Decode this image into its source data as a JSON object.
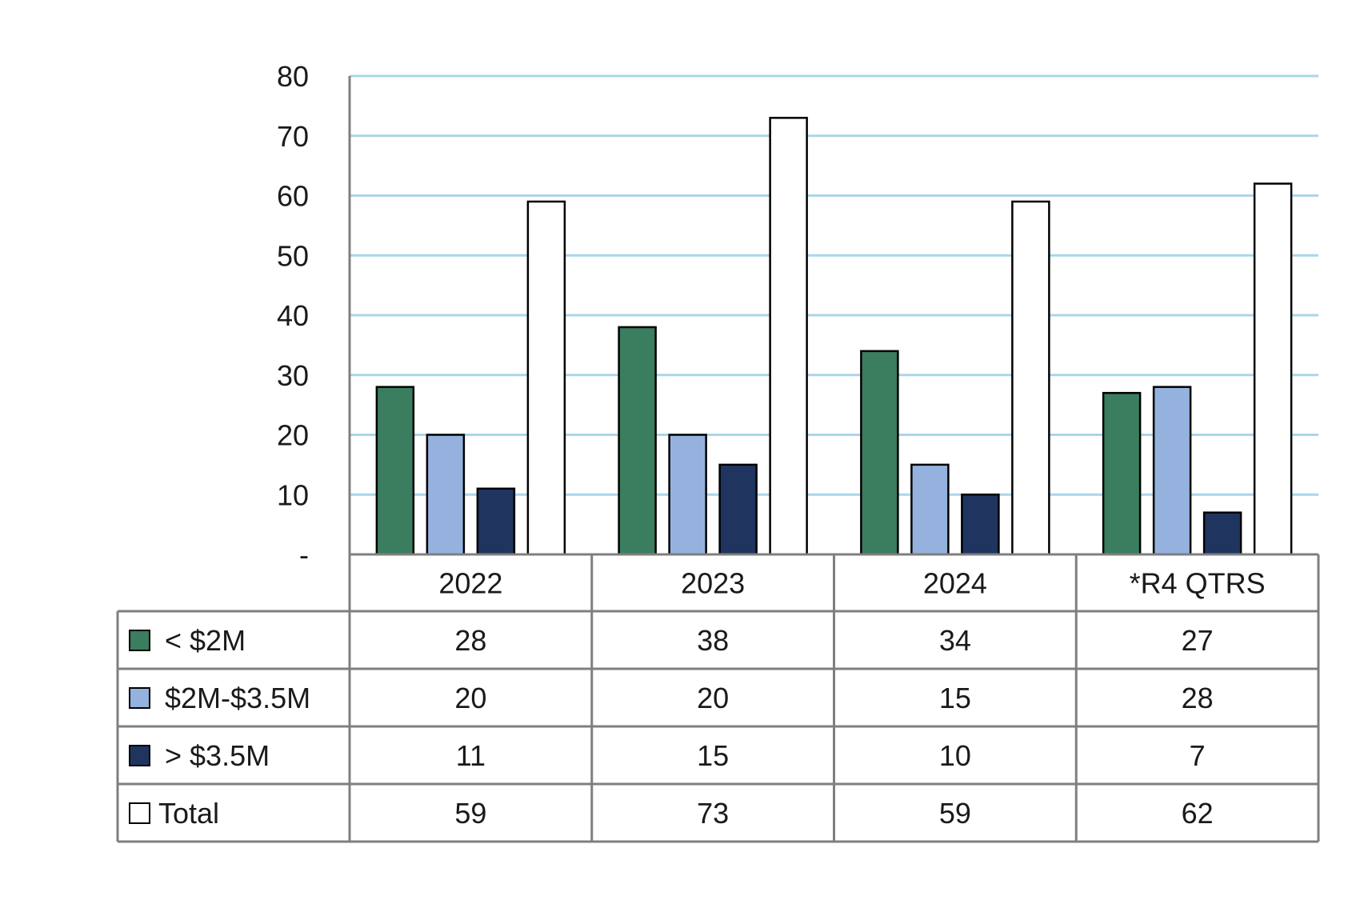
{
  "chart_data": {
    "type": "bar",
    "categories": [
      "2022",
      "2023",
      "2024",
      "*R4 QTRS"
    ],
    "series": [
      {
        "name": "< $2M",
        "values": [
          28,
          38,
          34,
          27
        ],
        "color": "#3a7d5f"
      },
      {
        "name": "$2M-$3.5M",
        "values": [
          20,
          20,
          15,
          28
        ],
        "color": "#95b2df"
      },
      {
        "name": "> $3.5M",
        "values": [
          11,
          15,
          10,
          7
        ],
        "color": "#1f3560"
      },
      {
        "name": "Total",
        "values": [
          59,
          73,
          59,
          62
        ],
        "color": "#ffffff"
      }
    ],
    "ylim": [
      0,
      80
    ],
    "yticks": [
      0,
      10,
      20,
      30,
      40,
      50,
      60,
      70,
      80
    ],
    "ytick_labels": [
      "-",
      "10",
      "20",
      "30",
      "40",
      "50",
      "60",
      "70",
      "80"
    ],
    "grid": true,
    "gridline_color": "#a9d6ea",
    "legend": "data-table",
    "title": "",
    "xlabel": "",
    "ylabel": ""
  }
}
